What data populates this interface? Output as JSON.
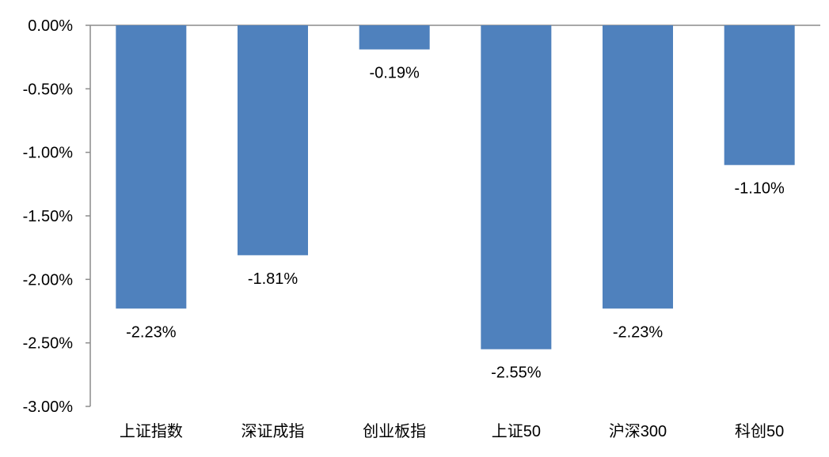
{
  "chart_data": {
    "type": "bar",
    "title": "",
    "xlabel": "",
    "ylabel": "",
    "categories": [
      "上证指数",
      "深证成指",
      "创业板指",
      "上证50",
      "沪深300",
      "科创50"
    ],
    "values": [
      -2.23,
      -1.81,
      -0.19,
      -2.55,
      -2.23,
      -1.1
    ],
    "data_labels": [
      "-2.23%",
      "-1.81%",
      "-0.19%",
      "-2.55%",
      "-2.23%",
      "-1.10%"
    ],
    "y_ticks": [
      0,
      -0.5,
      -1.0,
      -1.5,
      -2.0,
      -2.5,
      -3.0
    ],
    "y_tick_labels": [
      "0.00%",
      "-0.50%",
      "-1.00%",
      "-1.50%",
      "-2.00%",
      "-2.50%",
      "-3.00%"
    ],
    "ylim": [
      -3.0,
      0
    ],
    "grid": false,
    "legend": "none",
    "colors": {
      "bar": "#4F81BD",
      "axis": "#8C8C8C",
      "text": "#000000"
    }
  }
}
